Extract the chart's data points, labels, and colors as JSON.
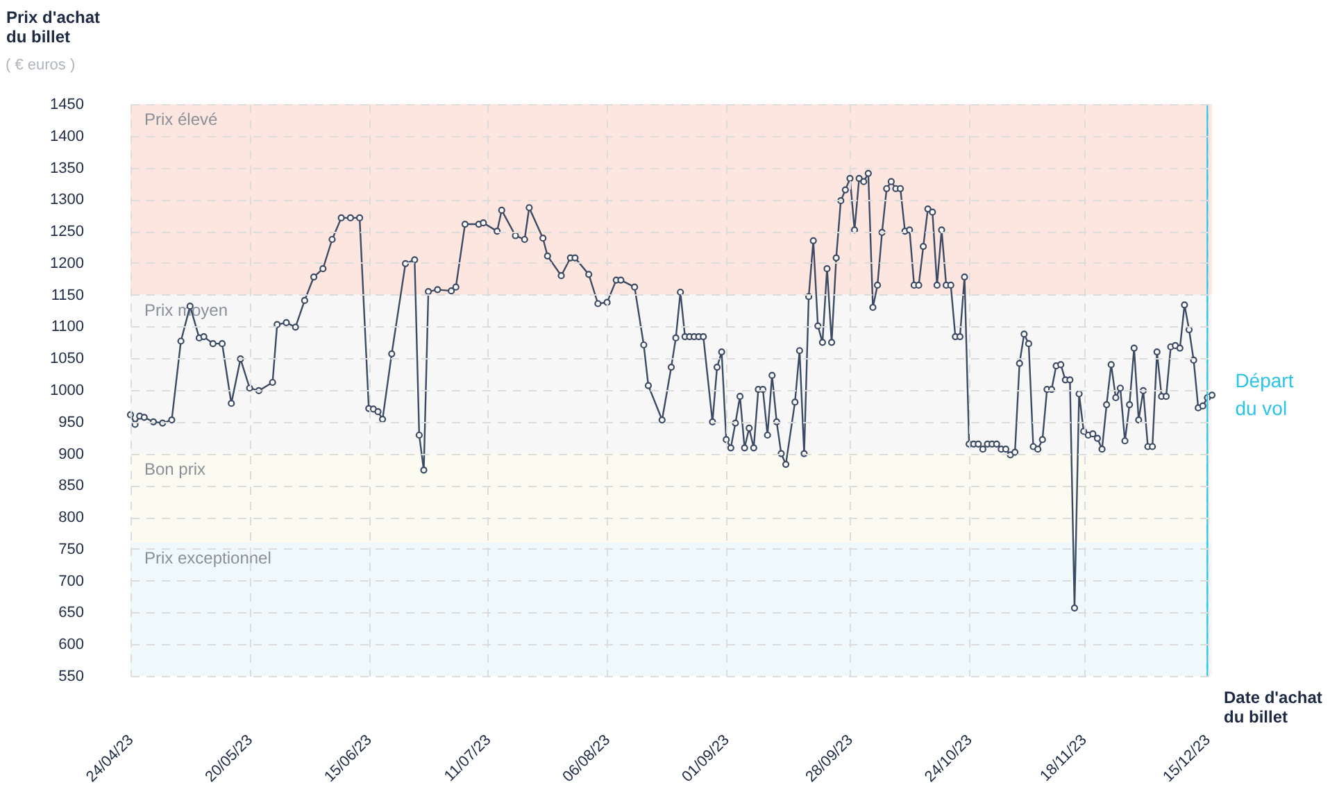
{
  "chart_data": {
    "type": "line",
    "xlabel": "Date d'achat du billet",
    "ylabel": "Prix d'achat du billet",
    "annotations": [
      "( € euros )"
    ],
    "x": [
      "2023-04-24",
      "2023-04-25",
      "2023-04-26",
      "2023-04-27",
      "2023-04-29",
      "2023-05-01",
      "2023-05-03",
      "2023-05-05",
      "2023-05-07",
      "2023-05-09",
      "2023-05-10",
      "2023-05-12",
      "2023-05-14",
      "2023-05-16",
      "2023-05-18",
      "2023-05-20",
      "2023-05-22",
      "2023-05-25",
      "2023-05-26",
      "2023-05-28",
      "2023-05-30",
      "2023-06-01",
      "2023-06-03",
      "2023-06-05",
      "2023-06-07",
      "2023-06-09",
      "2023-06-11",
      "2023-06-13",
      "2023-06-15",
      "2023-06-16",
      "2023-06-17",
      "2023-06-18",
      "2023-06-20",
      "2023-06-23",
      "2023-06-25",
      "2023-06-26",
      "2023-06-27",
      "2023-06-28",
      "2023-06-30",
      "2023-07-03",
      "2023-07-04",
      "2023-07-06",
      "2023-07-09",
      "2023-07-10",
      "2023-07-13",
      "2023-07-14",
      "2023-07-17",
      "2023-07-19",
      "2023-07-20",
      "2023-07-23",
      "2023-07-24",
      "2023-07-27",
      "2023-07-29",
      "2023-07-30",
      "2023-08-02",
      "2023-08-04",
      "2023-08-06",
      "2023-08-08",
      "2023-08-09",
      "2023-08-12",
      "2023-08-14",
      "2023-08-15",
      "2023-08-18",
      "2023-08-20",
      "2023-08-21",
      "2023-08-22",
      "2023-08-23",
      "2023-08-24",
      "2023-08-25",
      "2023-08-26",
      "2023-08-27",
      "2023-08-29",
      "2023-08-30",
      "2023-08-31",
      "2023-09-01",
      "2023-09-02",
      "2023-09-03",
      "2023-09-04",
      "2023-09-05",
      "2023-09-06",
      "2023-09-07",
      "2023-09-08",
      "2023-09-09",
      "2023-09-10",
      "2023-09-11",
      "2023-09-12",
      "2023-09-13",
      "2023-09-14",
      "2023-09-16",
      "2023-09-17",
      "2023-09-18",
      "2023-09-19",
      "2023-09-20",
      "2023-09-21",
      "2023-09-22",
      "2023-09-23",
      "2023-09-24",
      "2023-09-25",
      "2023-09-26",
      "2023-09-27",
      "2023-09-28",
      "2023-09-29",
      "2023-09-30",
      "2023-10-01",
      "2023-10-02",
      "2023-10-03",
      "2023-10-04",
      "2023-10-05",
      "2023-10-06",
      "2023-10-07",
      "2023-10-08",
      "2023-10-09",
      "2023-10-10",
      "2023-10-11",
      "2023-10-12",
      "2023-10-13",
      "2023-10-14",
      "2023-10-15",
      "2023-10-16",
      "2023-10-17",
      "2023-10-18",
      "2023-10-19",
      "2023-10-20",
      "2023-10-21",
      "2023-10-22",
      "2023-10-23",
      "2023-10-24",
      "2023-10-25",
      "2023-10-26",
      "2023-10-27",
      "2023-10-28",
      "2023-10-29",
      "2023-10-30",
      "2023-10-31",
      "2023-11-01",
      "2023-11-02",
      "2023-11-03",
      "2023-11-04",
      "2023-11-05",
      "2023-11-06",
      "2023-11-07",
      "2023-11-08",
      "2023-11-09",
      "2023-11-10",
      "2023-11-11",
      "2023-11-12",
      "2023-11-13",
      "2023-11-14",
      "2023-11-15",
      "2023-11-16",
      "2023-11-17",
      "2023-11-18",
      "2023-11-19",
      "2023-11-20",
      "2023-11-21",
      "2023-11-22",
      "2023-11-23",
      "2023-11-24",
      "2023-11-25",
      "2023-11-26",
      "2023-11-27",
      "2023-11-28",
      "2023-11-29",
      "2023-11-30",
      "2023-12-01",
      "2023-12-02",
      "2023-12-03",
      "2023-12-04",
      "2023-12-05",
      "2023-12-06",
      "2023-12-07",
      "2023-12-08",
      "2023-12-09",
      "2023-12-10",
      "2023-12-11",
      "2023-12-12",
      "2023-12-13",
      "2023-12-14",
      "2023-12-15",
      "2023-12-16"
    ],
    "series": [
      {
        "color": "#3d4a63",
        "values": [
          961,
          946,
          959,
          957,
          950,
          948,
          953,
          1077,
          1132,
          1082,
          1084,
          1073,
          1073,
          979,
          1049,
          1003,
          999,
          1012,
          1103,
          1106,
          1099,
          1141,
          1178,
          1191,
          1237,
          1271,
          1271,
          1271,
          971,
          970,
          966,
          954,
          1057,
          1199,
          1205,
          929,
          874,
          1155,
          1158,
          1156,
          1162,
          1261,
          1261,
          1263,
          1250,
          1283,
          1243,
          1237,
          1287,
          1239,
          1211,
          1180,
          1208,
          1208,
          1182,
          1136,
          1138,
          1173,
          1173,
          1162,
          1071,
          1007,
          953,
          1036,
          1082,
          1154,
          1084,
          1084,
          1084,
          1084,
          1084,
          950,
          1036,
          1060,
          922,
          909,
          948,
          990,
          909,
          940,
          909,
          1001,
          1001,
          929,
          1023,
          950,
          900,
          883,
          981,
          1062,
          900,
          1147,
          1235,
          1101,
          1075,
          1191,
          1075,
          1208,
          1298,
          1315,
          1333,
          1252,
          1333,
          1328,
          1341,
          1130,
          1165,
          1248,
          1317,
          1328,
          1317,
          1317,
          1250,
          1252,
          1165,
          1165,
          1226,
          1285,
          1280,
          1165,
          1252,
          1165,
          1165,
          1084,
          1084,
          1178,
          915,
          915,
          915,
          907,
          915,
          915,
          915,
          907,
          907,
          898,
          902,
          1042,
          1088,
          1073,
          911,
          907,
          922,
          1001,
          1001,
          1038,
          1040,
          1016,
          1016,
          657,
          994,
          935,
          929,
          931,
          924,
          907,
          977,
          1040,
          988,
          1003,
          920,
          977,
          1066,
          953,
          999,
          911,
          911,
          1060,
          990,
          990,
          1068,
          1070,
          1066,
          1134,
          1095,
          1047,
          972,
          975,
          988,
          992
        ]
      }
    ],
    "xlim": [
      "2023-04-24",
      "2023-12-16"
    ],
    "xticks": [
      {
        "value": "2023-04-24",
        "label": "24/04/23"
      },
      {
        "value": "2023-05-20",
        "label": "20/05/23"
      },
      {
        "value": "2023-06-15",
        "label": "15/06/23"
      },
      {
        "value": "2023-07-11",
        "label": "11/07/23"
      },
      {
        "value": "2023-08-06",
        "label": "06/08/23"
      },
      {
        "value": "2023-09-01",
        "label": "01/09/23"
      },
      {
        "value": "2023-09-28",
        "label": "28/09/23"
      },
      {
        "value": "2023-10-24",
        "label": "24/10/23"
      },
      {
        "value": "2023-11-18",
        "label": "18/11/23"
      },
      {
        "value": "2023-12-15",
        "label": "15/12/23"
      }
    ],
    "ylim": [
      550,
      1450
    ],
    "yticks": [
      550,
      600,
      650,
      700,
      750,
      800,
      850,
      900,
      950,
      1000,
      1050,
      1100,
      1150,
      1200,
      1250,
      1300,
      1350,
      1400,
      1450
    ],
    "bands": [
      {
        "axis": "y",
        "from": 1150,
        "to": 1450,
        "label": "Prix élevé",
        "color": "#fde6df"
      },
      {
        "axis": "y",
        "from": 900,
        "to": 1150,
        "label": "Prix moyen",
        "color": "#f7f7f7"
      },
      {
        "axis": "y",
        "from": 760,
        "to": 900,
        "label": "Bon prix",
        "color": "#fbfbf1"
      },
      {
        "axis": "y",
        "from": 550,
        "to": 760,
        "label": "Prix exceptionnel",
        "color": "#eff9fc"
      }
    ],
    "ref_lines": [
      {
        "axis": "x",
        "value": "2023-12-15",
        "label": "Départ du vol",
        "color": "#29c4e8"
      }
    ],
    "grid": true,
    "marker": "circle",
    "line_style": "solid"
  }
}
